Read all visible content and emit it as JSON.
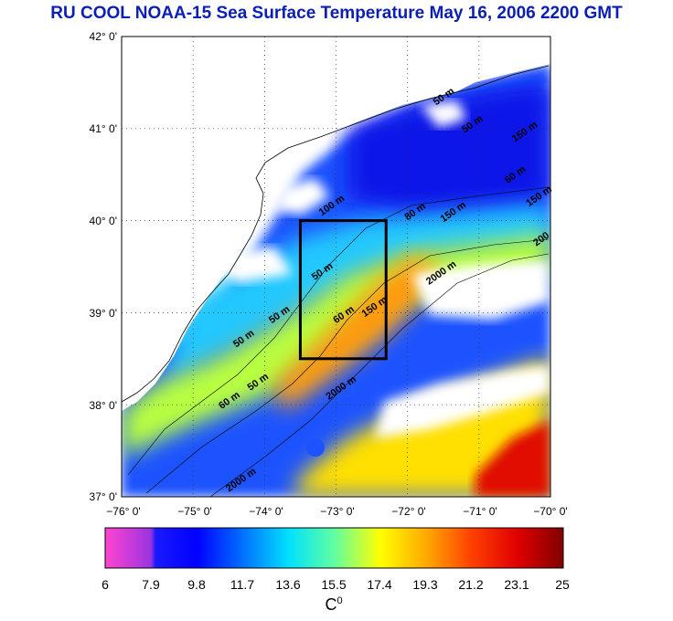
{
  "title": "RU COOL  NOAA-15 Sea Surface Temperature May 16, 2006 2200 GMT",
  "map": {
    "lon_range": [
      -76,
      -70
    ],
    "lat_range": [
      37,
      42
    ],
    "lat_ticks": [
      "42° 0'",
      "41° 0'",
      "40° 0'",
      "39° 0'",
      "38° 0'",
      "37° 0'"
    ],
    "lon_ticks": [
      "−76° 0'",
      "−75° 0'",
      "−74° 0'",
      "−73° 0'",
      "−72° 0'",
      "−71° 0'",
      "−70° 0'"
    ],
    "study_box": {
      "lon": [
        -73.5,
        -72.3
      ],
      "lat": [
        38.5,
        40.0
      ]
    },
    "contour_labels": [
      {
        "text": "50 m",
        "lon": -71.6,
        "lat": 41.25
      },
      {
        "text": "50 m",
        "lon": -71.2,
        "lat": 40.95
      },
      {
        "text": "150 m",
        "lon": -70.5,
        "lat": 40.85
      },
      {
        "text": "60 m",
        "lon": -70.6,
        "lat": 40.4
      },
      {
        "text": "150 m",
        "lon": -70.3,
        "lat": 40.15
      },
      {
        "text": "100 m",
        "lon": -73.2,
        "lat": 40.05
      },
      {
        "text": "80 m",
        "lon": -72.0,
        "lat": 40.0
      },
      {
        "text": "150 m",
        "lon": -71.5,
        "lat": 39.98
      },
      {
        "text": "200",
        "lon": -70.2,
        "lat": 39.72
      },
      {
        "text": "2000 m",
        "lon": -71.7,
        "lat": 39.3
      },
      {
        "text": "50 m",
        "lon": -73.3,
        "lat": 39.35
      },
      {
        "text": "50 m",
        "lon": -73.9,
        "lat": 38.88
      },
      {
        "text": "50 m",
        "lon": -74.4,
        "lat": 38.62
      },
      {
        "text": "60 m",
        "lon": -73.0,
        "lat": 38.88
      },
      {
        "text": "150 m",
        "lon": -72.6,
        "lat": 38.95
      },
      {
        "text": "50 m",
        "lon": -74.2,
        "lat": 38.15
      },
      {
        "text": "60 m",
        "lon": -74.6,
        "lat": 37.95
      },
      {
        "text": "2000 m",
        "lon": -73.1,
        "lat": 38.05
      },
      {
        "text": "2000 m",
        "lon": -74.5,
        "lat": 37.05
      }
    ]
  },
  "colorbar": {
    "ticks": [
      "6",
      "7.9",
      "9.8",
      "11.7",
      "13.6",
      "15.5",
      "17.4",
      "19.3",
      "21.2",
      "23.1",
      "25"
    ],
    "min": 6,
    "max": 25,
    "unit": "C",
    "unit_superscript": "0",
    "colors": [
      "#ff33cc",
      "#6a2bd9",
      "#0000ff",
      "#0080ff",
      "#00e5ff",
      "#66ff99",
      "#ffff00",
      "#ffa500",
      "#ff3300",
      "#990000"
    ]
  }
}
